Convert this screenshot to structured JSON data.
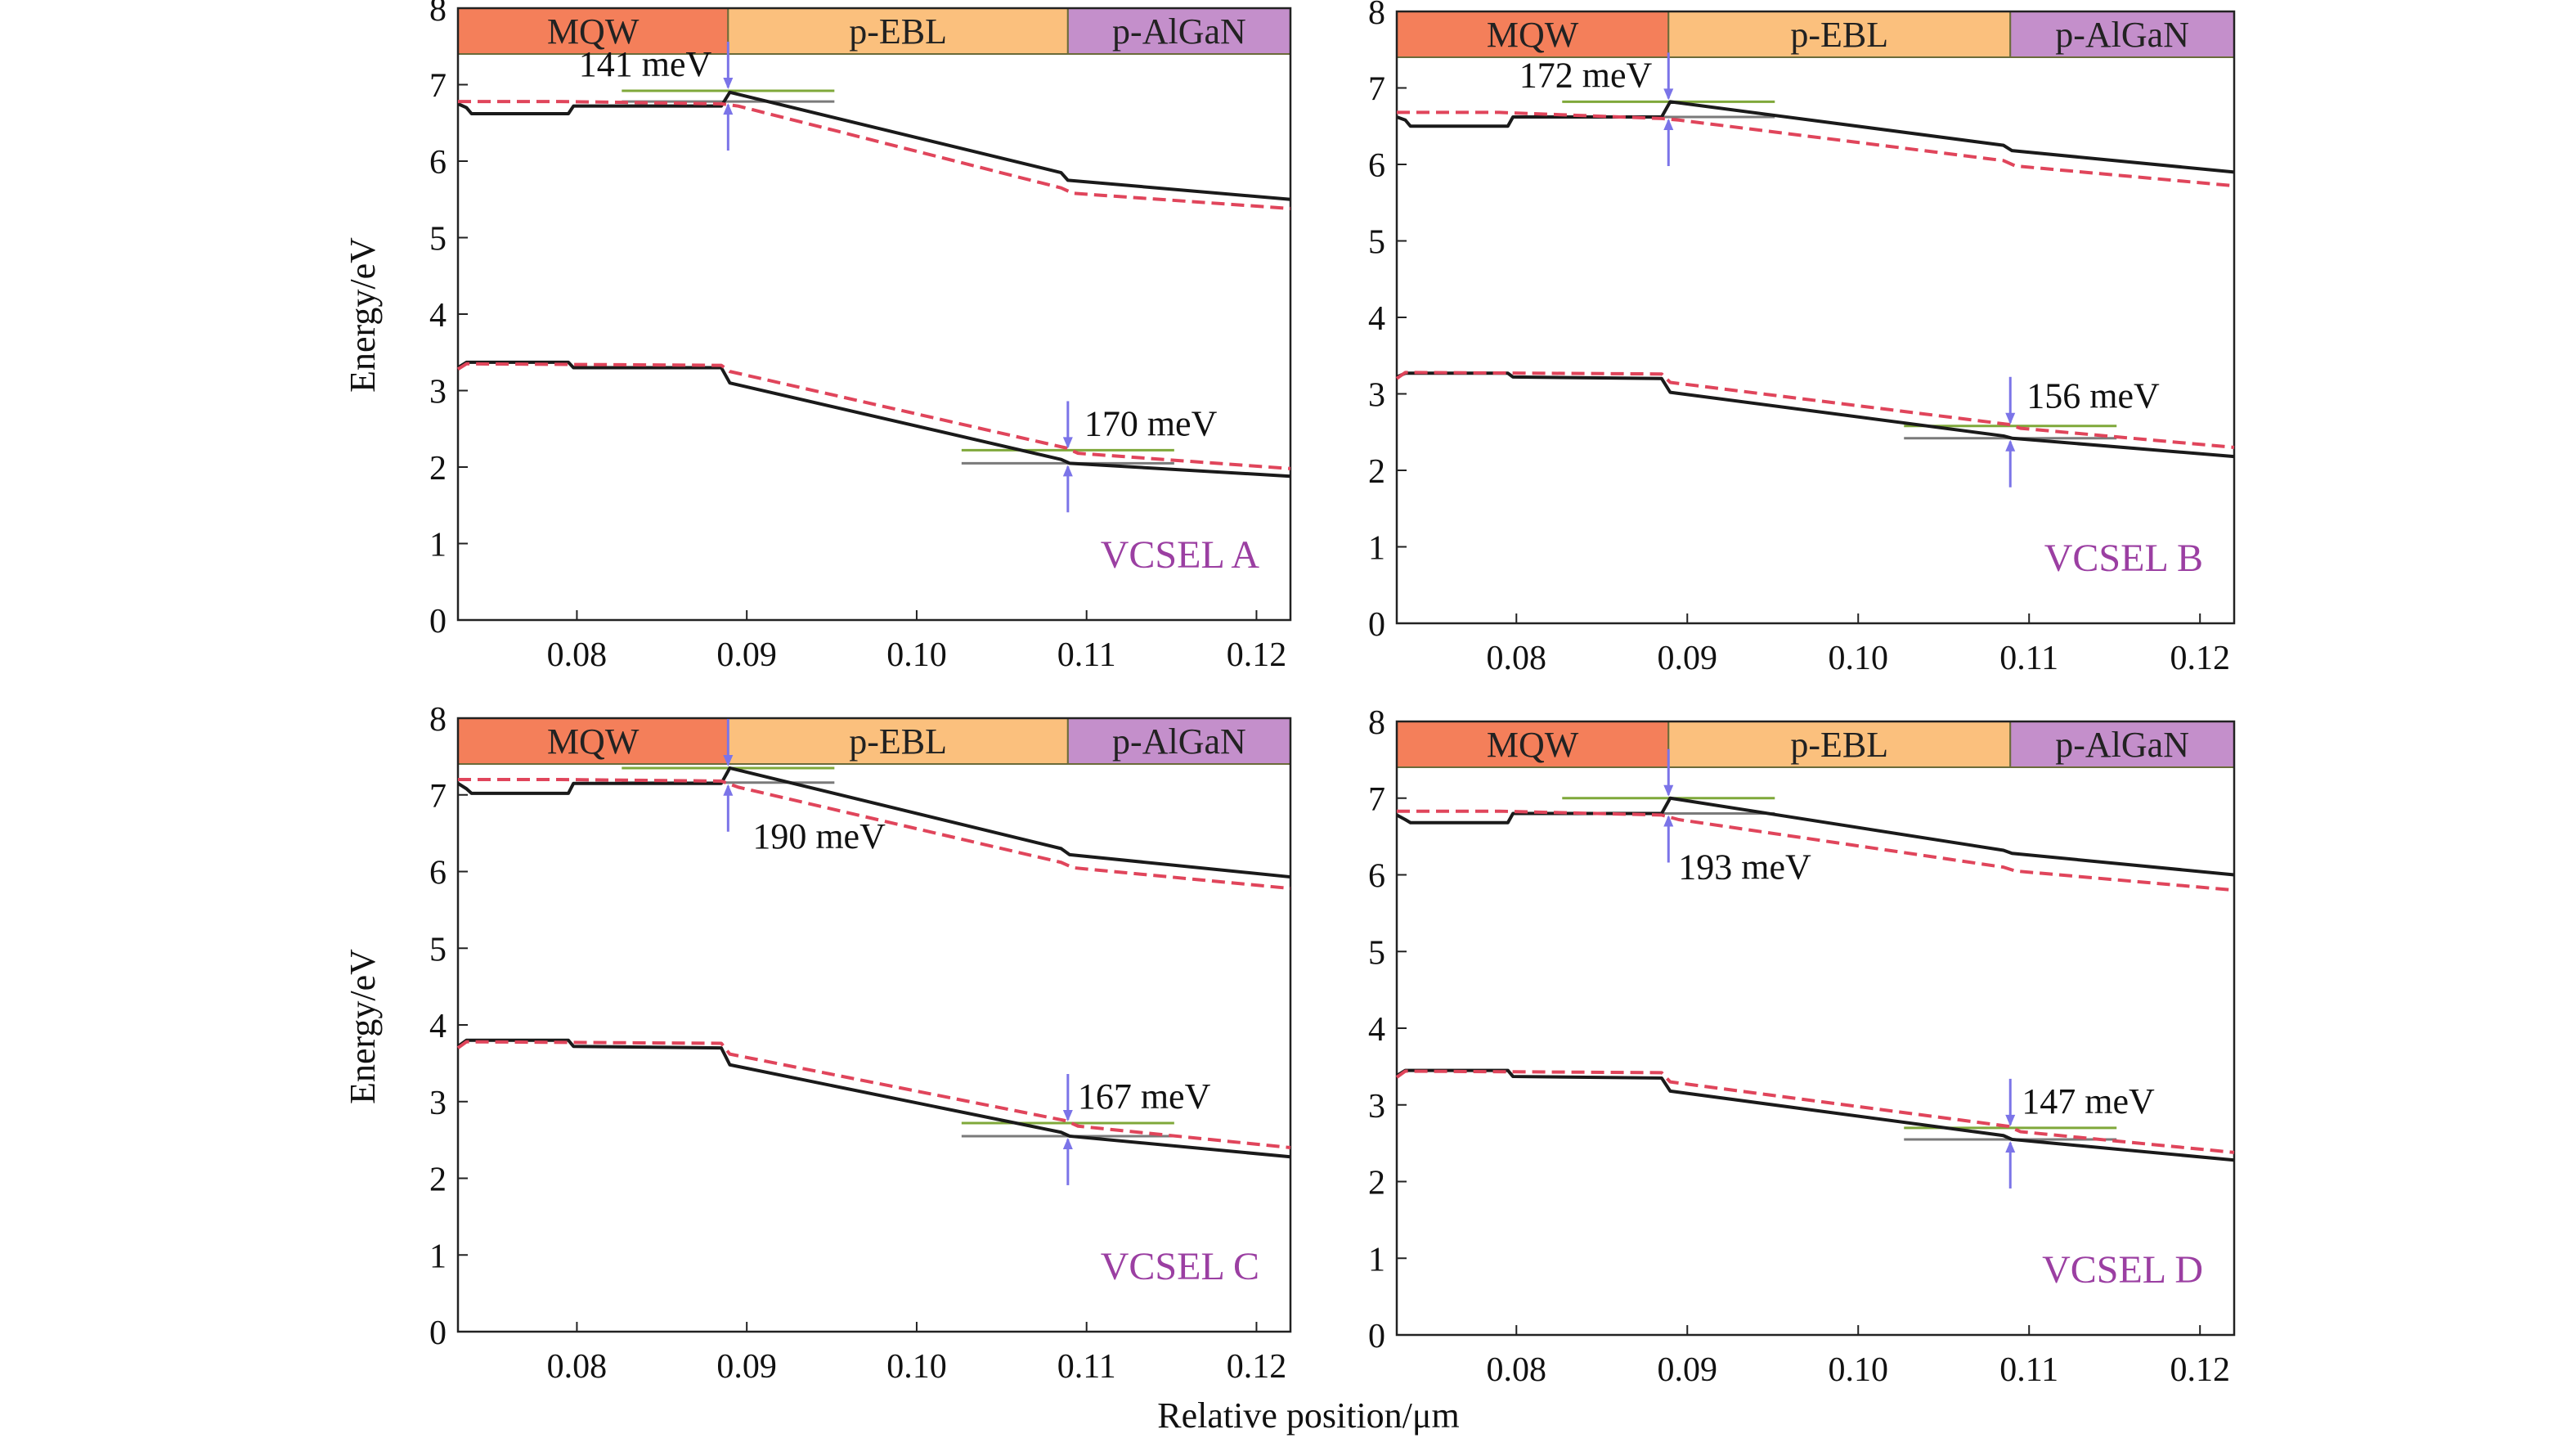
{
  "figure": {
    "x_axis_label": "Relative position/μm",
    "y_axis_label": "Energy/eV",
    "colors": {
      "mqw": "#F47F5A",
      "ebl": "#FBC07D",
      "algan": "#C48FCB",
      "solid_line": "#1a1a1a",
      "dashed_line": "#E0455B",
      "panel_label": "#9B3FA2",
      "annotation_arrow": "#7B74E8",
      "guide_green": "#7FA83A",
      "guide_gray": "#7A7A7A"
    }
  },
  "chart_data": [
    {
      "type": "line",
      "panel_label": "VCSEL A",
      "xlim": [
        0.073,
        0.122
      ],
      "ylim": [
        0,
        8
      ],
      "x_ticks": [
        "0.08",
        "0.09",
        "0.10",
        "0.11",
        "0.12"
      ],
      "y_ticks": [
        "0",
        "1",
        "2",
        "3",
        "4",
        "5",
        "6",
        "7",
        "8"
      ],
      "regions": [
        {
          "label": "MQW",
          "x_start": 0.073,
          "x_end": 0.0889
        },
        {
          "label": "p-EBL",
          "x_start": 0.0889,
          "x_end": 0.1089
        },
        {
          "label": "p-AlGaN",
          "x_start": 0.1089,
          "x_end": 0.122
        }
      ],
      "series": [
        {
          "style": "solid",
          "x": [
            0.073,
            0.0735,
            0.0738,
            0.0795,
            0.0798,
            0.0885,
            0.089,
            0.1085,
            0.1089,
            0.122
          ],
          "y": [
            6.75,
            6.7,
            6.62,
            6.62,
            6.72,
            6.72,
            6.9,
            5.85,
            5.75,
            5.5
          ]
        },
        {
          "style": "dashed",
          "x": [
            0.073,
            0.079,
            0.0885,
            0.0895,
            0.1085,
            0.1092,
            0.122
          ],
          "y": [
            6.78,
            6.78,
            6.75,
            6.72,
            5.65,
            5.58,
            5.38
          ]
        },
        {
          "style": "solid",
          "x": [
            0.073,
            0.0735,
            0.0795,
            0.0798,
            0.0885,
            0.089,
            0.1085,
            0.109,
            0.122
          ],
          "y": [
            3.3,
            3.37,
            3.37,
            3.3,
            3.3,
            3.1,
            2.1,
            2.05,
            1.88
          ]
        },
        {
          "style": "dashed",
          "x": [
            0.073,
            0.0735,
            0.0885,
            0.089,
            0.1088,
            0.1095,
            0.122
          ],
          "y": [
            3.28,
            3.35,
            3.33,
            3.25,
            2.25,
            2.18,
            1.98
          ]
        }
      ],
      "annotations": [
        {
          "text": "141 meV",
          "x": 0.0889,
          "y_top": 6.92,
          "y_bottom": 6.78
        },
        {
          "text": "170 meV",
          "x": 0.1089,
          "y_top": 2.22,
          "y_bottom": 2.05
        }
      ]
    },
    {
      "type": "line",
      "panel_label": "VCSEL B",
      "xlim": [
        0.073,
        0.122
      ],
      "ylim": [
        0,
        8
      ],
      "x_ticks": [
        "0.08",
        "0.09",
        "0.10",
        "0.11",
        "0.12"
      ],
      "y_ticks": [
        "0",
        "1",
        "2",
        "3",
        "4",
        "5",
        "6",
        "7",
        "8"
      ],
      "regions": [
        {
          "label": "MQW",
          "x_start": 0.073,
          "x_end": 0.0889
        },
        {
          "label": "p-EBL",
          "x_start": 0.0889,
          "x_end": 0.1089
        },
        {
          "label": "p-AlGaN",
          "x_start": 0.1089,
          "x_end": 0.122
        }
      ],
      "series": [
        {
          "style": "solid",
          "x": [
            0.073,
            0.0735,
            0.0738,
            0.0795,
            0.0798,
            0.0885,
            0.089,
            0.1085,
            0.109,
            0.122
          ],
          "y": [
            6.62,
            6.58,
            6.5,
            6.5,
            6.62,
            6.62,
            6.82,
            6.25,
            6.18,
            5.9
          ]
        },
        {
          "style": "dashed",
          "x": [
            0.073,
            0.079,
            0.0885,
            0.0895,
            0.1085,
            0.1092,
            0.122
          ],
          "y": [
            6.68,
            6.68,
            6.6,
            6.58,
            6.05,
            5.98,
            5.72
          ]
        },
        {
          "style": "solid",
          "x": [
            0.073,
            0.0735,
            0.0795,
            0.0798,
            0.0885,
            0.089,
            0.1085,
            0.109,
            0.122
          ],
          "y": [
            3.22,
            3.27,
            3.27,
            3.22,
            3.2,
            3.02,
            2.45,
            2.42,
            2.18
          ]
        },
        {
          "style": "dashed",
          "x": [
            0.073,
            0.0735,
            0.0885,
            0.089,
            0.1088,
            0.1095,
            0.122
          ],
          "y": [
            3.2,
            3.28,
            3.26,
            3.15,
            2.6,
            2.55,
            2.3
          ]
        }
      ],
      "annotations": [
        {
          "text": "172 meV",
          "x": 0.0889,
          "y_top": 6.82,
          "y_bottom": 6.62
        },
        {
          "text": "156 meV",
          "x": 0.1089,
          "y_top": 2.58,
          "y_bottom": 2.42
        }
      ]
    },
    {
      "type": "line",
      "panel_label": "VCSEL C",
      "xlim": [
        0.073,
        0.122
      ],
      "ylim": [
        0,
        8
      ],
      "x_ticks": [
        "0.08",
        "0.09",
        "0.10",
        "0.11",
        "0.12"
      ],
      "y_ticks": [
        "0",
        "1",
        "2",
        "3",
        "4",
        "5",
        "6",
        "7",
        "8"
      ],
      "regions": [
        {
          "label": "MQW",
          "x_start": 0.073,
          "x_end": 0.0889
        },
        {
          "label": "p-EBL",
          "x_start": 0.0889,
          "x_end": 0.1089
        },
        {
          "label": "p-AlGaN",
          "x_start": 0.1089,
          "x_end": 0.122
        }
      ],
      "series": [
        {
          "style": "solid",
          "x": [
            0.073,
            0.0735,
            0.0738,
            0.0795,
            0.0798,
            0.0885,
            0.089,
            0.1085,
            0.109,
            0.122
          ],
          "y": [
            7.15,
            7.08,
            7.02,
            7.02,
            7.15,
            7.15,
            7.35,
            6.3,
            6.22,
            5.93
          ]
        },
        {
          "style": "dashed",
          "x": [
            0.073,
            0.079,
            0.0885,
            0.0895,
            0.1085,
            0.1092,
            0.122
          ],
          "y": [
            7.2,
            7.2,
            7.18,
            7.1,
            6.12,
            6.05,
            5.78
          ]
        },
        {
          "style": "solid",
          "x": [
            0.073,
            0.0735,
            0.0795,
            0.0798,
            0.0885,
            0.089,
            0.1085,
            0.109,
            0.122
          ],
          "y": [
            3.72,
            3.8,
            3.8,
            3.72,
            3.7,
            3.48,
            2.6,
            2.55,
            2.28
          ]
        },
        {
          "style": "dashed",
          "x": [
            0.073,
            0.0735,
            0.0885,
            0.089,
            0.1088,
            0.1095,
            0.122
          ],
          "y": [
            3.7,
            3.78,
            3.76,
            3.62,
            2.75,
            2.68,
            2.4
          ]
        }
      ],
      "annotations": [
        {
          "text": "190 meV",
          "x": 0.0889,
          "y_top": 7.35,
          "y_bottom": 7.16
        },
        {
          "text": "167 meV",
          "x": 0.1089,
          "y_top": 2.72,
          "y_bottom": 2.55
        }
      ]
    },
    {
      "type": "line",
      "panel_label": "VCSEL D",
      "xlim": [
        0.073,
        0.122
      ],
      "ylim": [
        0,
        8
      ],
      "x_ticks": [
        "0.08",
        "0.09",
        "0.10",
        "0.11",
        "0.12"
      ],
      "y_ticks": [
        "0",
        "1",
        "2",
        "3",
        "4",
        "5",
        "6",
        "7",
        "8"
      ],
      "regions": [
        {
          "label": "MQW",
          "x_start": 0.073,
          "x_end": 0.0889
        },
        {
          "label": "p-EBL",
          "x_start": 0.0889,
          "x_end": 0.1089
        },
        {
          "label": "p-AlGaN",
          "x_start": 0.1089,
          "x_end": 0.122
        }
      ],
      "series": [
        {
          "style": "solid",
          "x": [
            0.073,
            0.0735,
            0.0738,
            0.0795,
            0.0798,
            0.0885,
            0.089,
            0.1085,
            0.109,
            0.122
          ],
          "y": [
            6.78,
            6.72,
            6.68,
            6.68,
            6.8,
            6.8,
            7.0,
            6.32,
            6.28,
            6.0
          ]
        },
        {
          "style": "dashed",
          "x": [
            0.073,
            0.079,
            0.0885,
            0.0895,
            0.1085,
            0.1092,
            0.122
          ],
          "y": [
            6.83,
            6.83,
            6.78,
            6.72,
            6.1,
            6.05,
            5.8
          ]
        },
        {
          "style": "solid",
          "x": [
            0.073,
            0.0735,
            0.0795,
            0.0798,
            0.0885,
            0.089,
            0.1085,
            0.109,
            0.122
          ],
          "y": [
            3.38,
            3.45,
            3.45,
            3.37,
            3.35,
            3.18,
            2.6,
            2.55,
            2.28
          ]
        },
        {
          "style": "dashed",
          "x": [
            0.073,
            0.0735,
            0.0885,
            0.089,
            0.1088,
            0.1095,
            0.122
          ],
          "y": [
            3.36,
            3.44,
            3.42,
            3.3,
            2.72,
            2.65,
            2.38
          ]
        }
      ],
      "annotations": [
        {
          "text": "193 meV",
          "x": 0.0889,
          "y_top": 7.0,
          "y_bottom": 6.8
        },
        {
          "text": "147 meV",
          "x": 0.1089,
          "y_top": 2.7,
          "y_bottom": 2.55
        }
      ]
    }
  ]
}
